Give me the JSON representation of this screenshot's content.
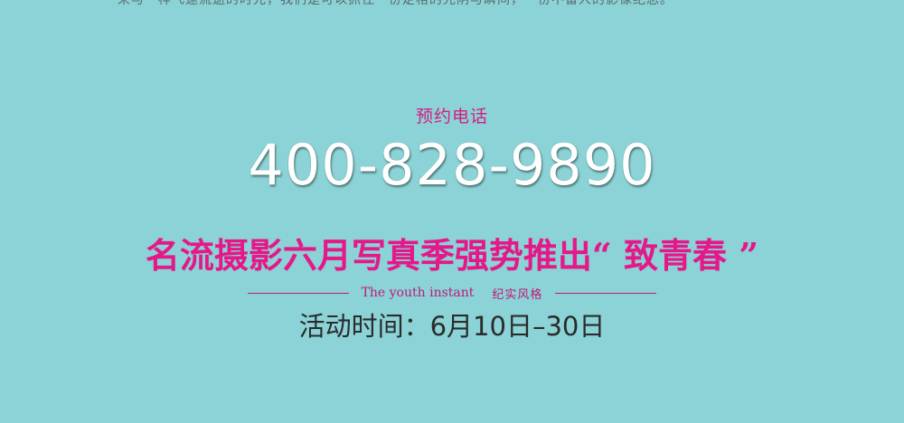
{
  "top_text": "来与一样飞速流逝的时光，我们是可以抓住一份定格的光阴与瞬间，一份不留人的影像纪念。",
  "booking": {
    "label": "预约电话",
    "phone": "400-828-9890"
  },
  "promo": {
    "headline": "名流摄影六月写真季强势推出“ 致青春 ”",
    "subtitle_en": "The youth instant",
    "subtitle_cn": "纪实风格",
    "dates": "活动时间：6月10日–30日"
  },
  "colors": {
    "background": "#8bd3d6",
    "accent_pink": "#e5188a",
    "phone_text": "#ffffff",
    "dates_text": "#2b2b2b"
  }
}
